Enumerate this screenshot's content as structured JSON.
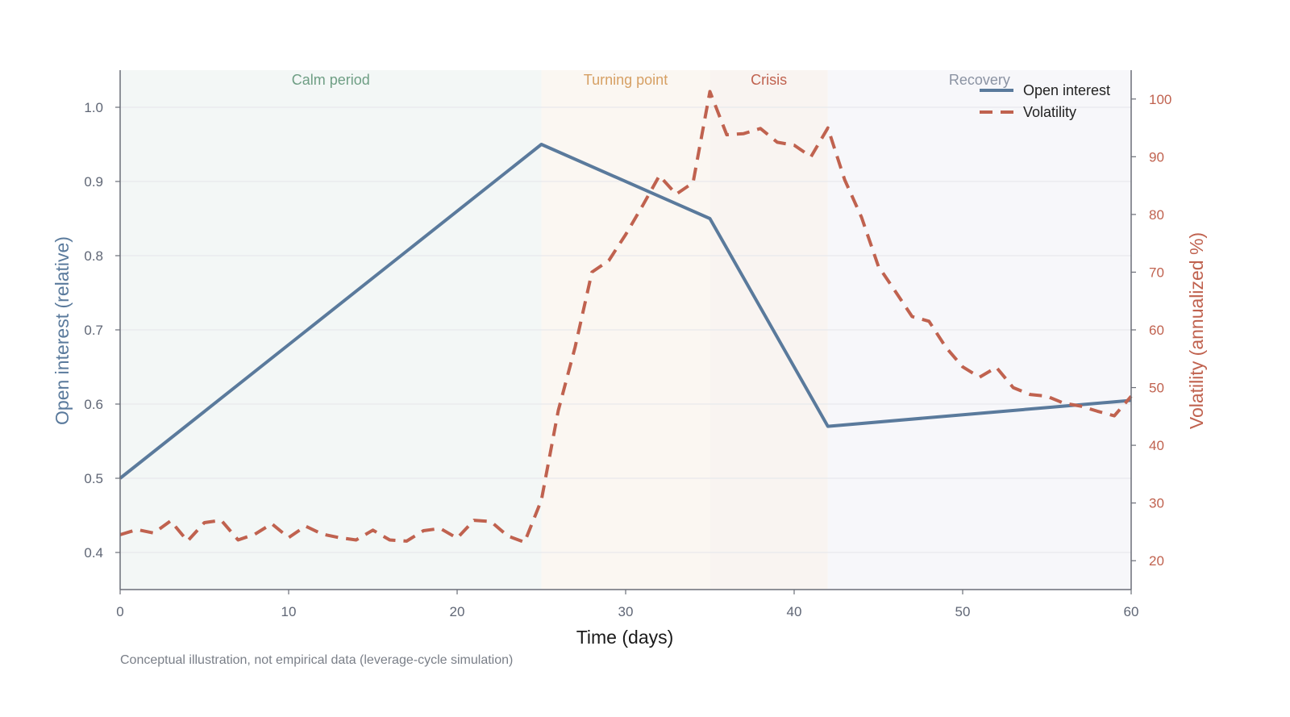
{
  "chart_data": {
    "type": "line",
    "xlabel": "Time (days)",
    "ylabel": "Open interest (relative)",
    "y2label": "Volatility (annualized %)",
    "footnote": "Conceptual illustration, not empirical data (leverage-cycle simulation)",
    "xlim": [
      0,
      60
    ],
    "ylim": [
      0.35,
      1.05
    ],
    "y2lim": [
      15,
      105
    ],
    "xticks": [
      0,
      10,
      20,
      30,
      40,
      50,
      60
    ],
    "yticks": [
      0.4,
      0.5,
      0.6,
      0.7,
      0.8,
      0.9,
      1.0
    ],
    "y2ticks": [
      20,
      30,
      40,
      50,
      60,
      70,
      80,
      90,
      100
    ],
    "grid": "horizontal",
    "legend_position": "top-right",
    "regions": [
      {
        "label": "Calm period",
        "start": 0,
        "end": 25,
        "color": "#6e9e84",
        "fill": "#f3f7f6"
      },
      {
        "label": "Turning point",
        "start": 25,
        "end": 35,
        "color": "#d6a064",
        "fill": "#fbf7f2"
      },
      {
        "label": "Crisis",
        "start": 35,
        "end": 42,
        "color": "#c0624f",
        "fill": "#f9f4f1"
      },
      {
        "label": "Recovery",
        "start": 42,
        "end": 60,
        "color": "#8b93a3",
        "fill": "#f7f7fa"
      }
    ],
    "series": [
      {
        "name": "Open interest",
        "axis": "left",
        "style": "solid",
        "color": "#5a7a9c",
        "x": [
          0,
          25,
          35,
          42,
          60
        ],
        "y": [
          0.5,
          0.95,
          0.85,
          0.57,
          0.605
        ]
      },
      {
        "name": "Volatility",
        "axis": "right",
        "style": "dashed",
        "color": "#c0624f",
        "x": [
          0,
          1,
          2,
          3,
          4,
          5,
          6,
          7,
          8,
          9,
          10,
          11,
          12,
          13,
          14,
          15,
          16,
          17,
          18,
          19,
          20,
          21,
          22,
          23,
          24,
          25,
          26,
          27,
          28,
          29,
          30,
          31,
          32,
          33,
          34,
          35,
          36,
          37,
          38,
          39,
          40,
          41,
          42,
          43,
          44,
          45,
          46,
          47,
          48,
          49,
          50,
          51,
          52,
          53,
          54,
          55,
          56,
          57,
          58,
          59,
          60
        ],
        "y": [
          24.5,
          25.4,
          24.8,
          26.9,
          23.4,
          26.6,
          27.0,
          23.6,
          24.6,
          26.4,
          24.0,
          26.0,
          24.6,
          24.0,
          23.6,
          25.3,
          23.6,
          23.4,
          25.2,
          25.6,
          23.9,
          27.0,
          26.8,
          24.3,
          23.2,
          30.5,
          46.0,
          57.0,
          70.0,
          72.0,
          76.5,
          81.5,
          86.7,
          83.5,
          85.5,
          101.3,
          93.8,
          94.0,
          94.9,
          92.5,
          92.0,
          90.0,
          95.0,
          86.0,
          79.5,
          71.0,
          66.7,
          62.3,
          61.5,
          57.0,
          53.6,
          51.8,
          53.5,
          50.0,
          48.8,
          48.5,
          47.3,
          46.8,
          45.9,
          45.1,
          48.5
        ]
      }
    ]
  }
}
